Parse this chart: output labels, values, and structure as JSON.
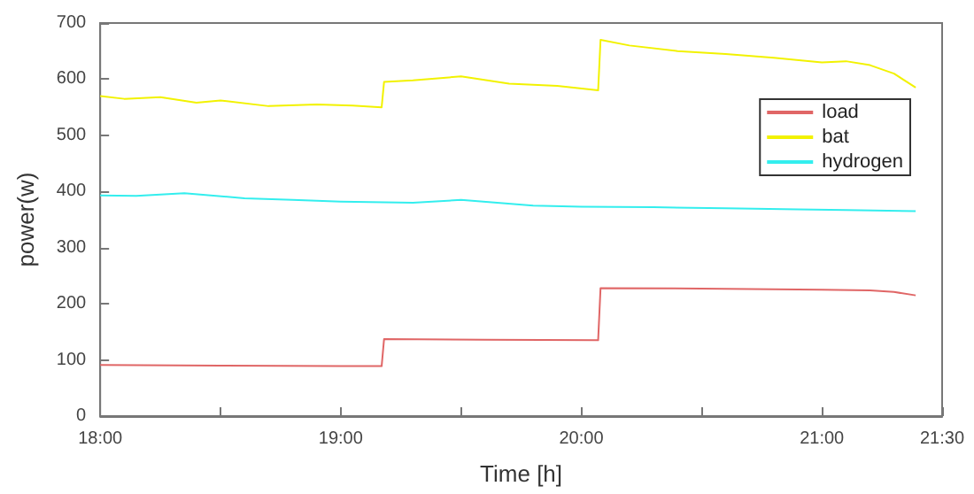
{
  "chart_data": {
    "type": "line",
    "xlabel": "Time [h]",
    "ylabel": "power(w)",
    "xlim": [
      18,
      21.5
    ],
    "xticks": [
      {
        "value": 18,
        "label": "18:00"
      },
      {
        "value": 18.5,
        "label": null
      },
      {
        "value": 19,
        "label": "19:00"
      },
      {
        "value": 19.5,
        "label": null
      },
      {
        "value": 20,
        "label": "20:00"
      },
      {
        "value": 20.5,
        "label": null
      },
      {
        "value": 21,
        "label": "21:00"
      },
      {
        "value": 21.5,
        "label": "21:30"
      }
    ],
    "ylim": [
      0,
      700
    ],
    "yticks": [
      0,
      100,
      200,
      300,
      400,
      500,
      600,
      700
    ],
    "grid": false,
    "legend": "top right",
    "marker": "none",
    "line_style": "solid",
    "series": [
      {
        "name": "load",
        "color": "#e06666",
        "x": [
          18,
          18.5,
          19,
          19.17,
          19.18,
          19.6,
          20.07,
          20.08,
          20.5,
          21,
          21.2,
          21.3,
          21.39
        ],
        "values": [
          91,
          90,
          89,
          89,
          137,
          136,
          135,
          228,
          227,
          225,
          224,
          221,
          215
        ]
      },
      {
        "name": "bat",
        "color": "#f2f200",
        "x": [
          18,
          18.1,
          18.25,
          18.4,
          18.5,
          18.7,
          18.9,
          19.05,
          19.17,
          19.18,
          19.3,
          19.5,
          19.7,
          19.9,
          20.07,
          20.08,
          20.2,
          20.4,
          20.6,
          20.8,
          21,
          21.1,
          21.2,
          21.3,
          21.39
        ],
        "values": [
          570,
          565,
          568,
          558,
          562,
          552,
          555,
          553,
          550,
          595,
          598,
          605,
          592,
          588,
          580,
          670,
          660,
          650,
          645,
          638,
          630,
          632,
          625,
          610,
          585
        ]
      },
      {
        "name": "hydrogen",
        "color": "#33eeee",
        "x": [
          18,
          18.15,
          18.35,
          18.6,
          18.8,
          19,
          19.3,
          19.5,
          19.8,
          20,
          20.3,
          20.6,
          20.9,
          21.1,
          21.39
        ],
        "values": [
          393,
          392,
          397,
          388,
          385,
          382,
          380,
          385,
          375,
          373,
          372,
          370,
          368,
          367,
          365
        ]
      }
    ]
  }
}
